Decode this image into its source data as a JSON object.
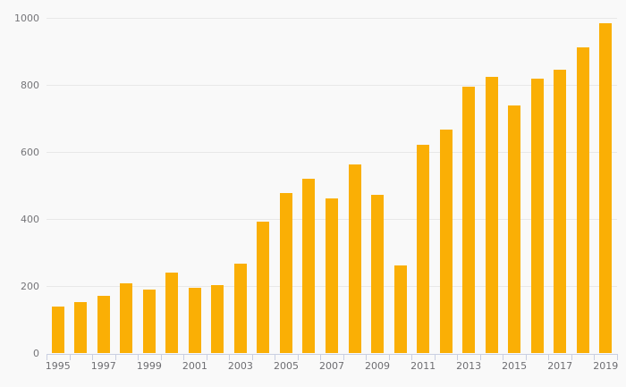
{
  "chart_data": {
    "type": "bar",
    "title": "",
    "xlabel": "",
    "ylabel": "",
    "categories": [
      "1995",
      "1996",
      "1997",
      "1998",
      "1999",
      "2000",
      "2001",
      "2002",
      "2003",
      "2004",
      "2005",
      "2006",
      "2007",
      "2008",
      "2009",
      "2010",
      "2011",
      "2012",
      "2013",
      "2014",
      "2015",
      "2016",
      "2017",
      "2018",
      "2019"
    ],
    "values": [
      140,
      152,
      173,
      208,
      190,
      242,
      197,
      203,
      268,
      392,
      477,
      520,
      463,
      562,
      474,
      263,
      621,
      666,
      794,
      825,
      740,
      818,
      845,
      913,
      983
    ],
    "ylim": [
      0,
      1000
    ],
    "yticks": [
      0,
      200,
      400,
      600,
      800,
      1000
    ],
    "xtick_labels": [
      "1995",
      "1997",
      "1999",
      "2001",
      "2003",
      "2005",
      "2007",
      "2009",
      "2011",
      "2013",
      "2015",
      "2017",
      "2019"
    ],
    "grid": "horizontal",
    "legend": "none",
    "colors": {
      "bar": "#FAAF05",
      "background": "#F9F9F9",
      "gridline": "#E8E8E8",
      "axis_line": "#C9CFE2",
      "tick": "#C9CFE2",
      "y_label": "#757579",
      "x_label": "#6E6E72"
    }
  }
}
